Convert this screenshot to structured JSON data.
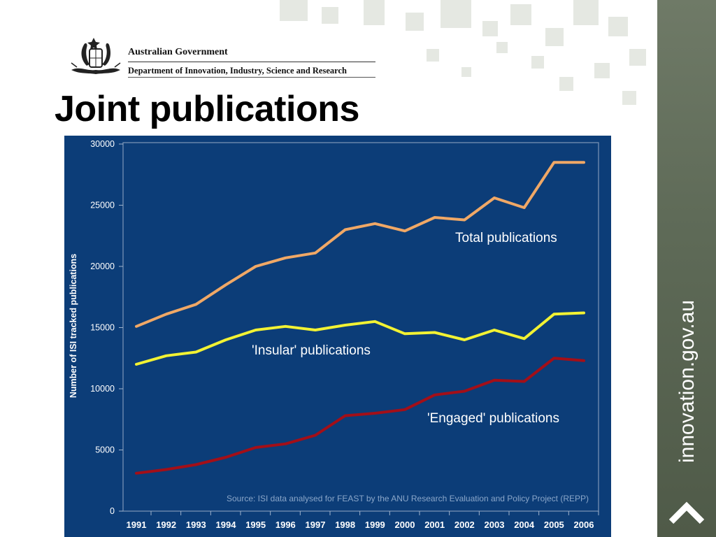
{
  "header": {
    "gov_name": "Australian Government",
    "department": "Department of Innovation, Industry, Science and Research"
  },
  "page_title": "Joint publications",
  "sidebar": {
    "site": "innovation.gov.au"
  },
  "colors": {
    "panel_bg": "#0c3d78",
    "total": "#f0a866",
    "insular": "#f2f233",
    "engaged": "#a30f18",
    "sidebar": "#5f6b58"
  },
  "chart_data": {
    "type": "line",
    "title": "",
    "xlabel": "",
    "ylabel": "Number of ISI tracked publications",
    "ylim": [
      0,
      30000
    ],
    "yticks": [
      0,
      5000,
      10000,
      15000,
      20000,
      25000,
      30000
    ],
    "x": [
      "1991",
      "1992",
      "1993",
      "1994",
      "1995",
      "1996",
      "1997",
      "1998",
      "1999",
      "2000",
      "2001",
      "2002",
      "2003",
      "2004",
      "2005",
      "2006"
    ],
    "series": [
      {
        "name": "Total publications",
        "values": [
          15100,
          16100,
          16900,
          18500,
          20000,
          20700,
          21100,
          23000,
          23500,
          22900,
          24000,
          23800,
          25600,
          24800,
          28500,
          28500
        ]
      },
      {
        "name": "'Insular' publications",
        "values": [
          12000,
          12700,
          13000,
          14000,
          14800,
          15100,
          14800,
          15200,
          15500,
          14500,
          14600,
          14000,
          14800,
          14100,
          16100,
          16200
        ]
      },
      {
        "name": "'Engaged' publications",
        "values": [
          3100,
          3400,
          3800,
          4400,
          5200,
          5500,
          6200,
          7800,
          8000,
          8300,
          9500,
          9800,
          10700,
          10600,
          12500,
          12300
        ]
      }
    ],
    "grid": false,
    "legend": "inline labels",
    "source": "Source: ISI data analysed for FEAST by the ANU Research Evaluation and Policy Project (REPP)"
  }
}
